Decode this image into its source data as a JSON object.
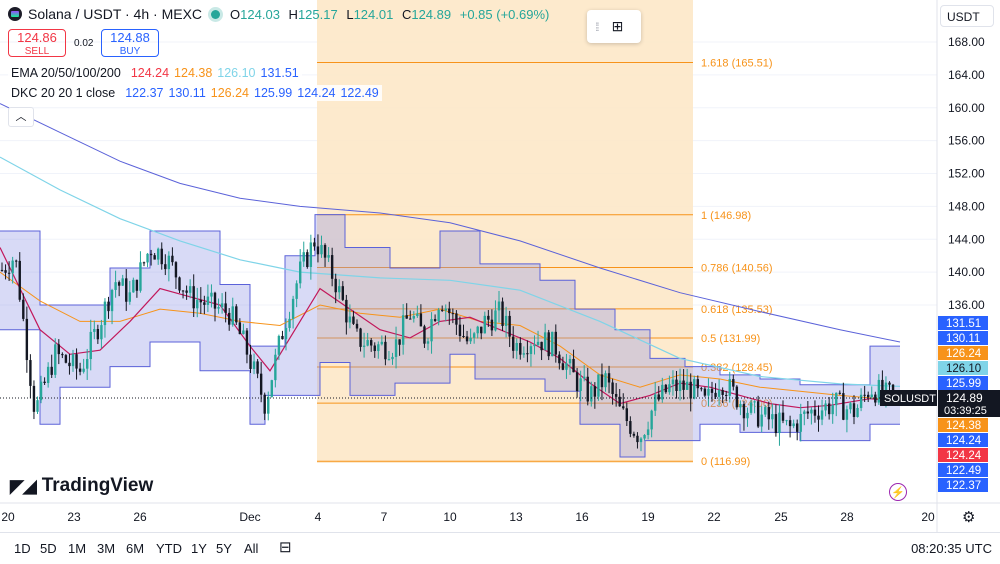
{
  "header": {
    "symbol_title": "Solana / USDT · 4h · MEXC",
    "ohlc": [
      {
        "key": "O",
        "value": "124.03"
      },
      {
        "key": "H",
        "value": "125.17"
      },
      {
        "key": "L",
        "value": "124.01"
      },
      {
        "key": "C",
        "value": "124.89"
      },
      {
        "key": "",
        "value": "+0.85 (+0.69%)"
      }
    ]
  },
  "trade": {
    "sell_price": "124.86",
    "sell_label": "SELL",
    "spread": "0.02",
    "buy_price": "124.88",
    "buy_label": "BUY"
  },
  "indicators": {
    "ema_label": "EMA 20/50/100/200",
    "ema_values": [
      {
        "value": "124.24",
        "color": "#f23645"
      },
      {
        "value": "124.38",
        "color": "#f7931a"
      },
      {
        "value": "126.10",
        "color": "#7fd4e8"
      },
      {
        "value": "131.51",
        "color": "#2962ff"
      }
    ],
    "dkc_label": "DKC 20 20 1 close",
    "dkc_values": [
      {
        "value": "122.37",
        "color": "#2962ff"
      },
      {
        "value": "130.11",
        "color": "#2962ff"
      },
      {
        "value": "126.24",
        "color": "#f7931a"
      },
      {
        "value": "125.99",
        "color": "#2962ff"
      },
      {
        "value": "124.24",
        "color": "#2962ff"
      },
      {
        "value": "122.49",
        "color": "#2962ff"
      }
    ]
  },
  "toolbar": {
    "currency": "USDT",
    "collapse_icon": "chevron-up-icon",
    "add_icon": "add-layout-icon"
  },
  "branding": {
    "name": "TradingView"
  },
  "bottom_bar": {
    "ranges": [
      "1D",
      "5D",
      "1M",
      "3M",
      "6M",
      "YTD",
      "1Y",
      "5Y",
      "All"
    ],
    "clock": "08:20:35 UTC"
  },
  "colors": {
    "up": "#26a69a",
    "down": "#ef5350",
    "fib": "#f7931a",
    "fib_zone": "#fde6c4",
    "keltner_fill": "#c9cdf5",
    "keltner_line": "#5b62d9"
  },
  "chart_data": {
    "type": "candlestick",
    "symbol": "SOLUSDT",
    "timeframe": "4h",
    "exchange": "MEXC",
    "y_axis": {
      "ticks": [
        168,
        164,
        160,
        156,
        152,
        148,
        144,
        140,
        136
      ],
      "ylim": [
        115.0,
        171.0
      ]
    },
    "x_axis": {
      "ticks": [
        "20",
        "23",
        "26",
        "Dec",
        "4",
        "7",
        "10",
        "13",
        "16",
        "19",
        "22",
        "25",
        "28",
        "20"
      ]
    },
    "last_price": {
      "label": "SOLUSDT",
      "value": "124.89",
      "countdown": "03:39:25"
    },
    "price_tags": [
      {
        "value": "131.51",
        "color": "#2962ff"
      },
      {
        "value": "130.11",
        "color": "#2962ff"
      },
      {
        "value": "126.24",
        "color": "#f7931a"
      },
      {
        "value": "126.10",
        "color": "#7fd4e8"
      },
      {
        "value": "125.99",
        "color": "#2962ff"
      },
      {
        "value": "124.38",
        "color": "#f7931a"
      },
      {
        "value": "124.24",
        "color": "#2962ff"
      },
      {
        "value": "124.24",
        "color": "#f23645"
      },
      {
        "value": "122.49",
        "color": "#2962ff"
      },
      {
        "value": "122.37",
        "color": "#2962ff"
      }
    ],
    "fibonacci": [
      {
        "ratio": 1.618,
        "price": 165.51,
        "label": "1.618 (165.51)"
      },
      {
        "ratio": 1,
        "price": 146.98,
        "label": "1 (146.98)"
      },
      {
        "ratio": 0.786,
        "price": 140.56,
        "label": "0.786 (140.56)"
      },
      {
        "ratio": 0.618,
        "price": 135.53,
        "label": "0.618 (135.53)"
      },
      {
        "ratio": 0.5,
        "price": 131.99,
        "label": "0.5 (131.99)"
      },
      {
        "ratio": 0.382,
        "price": 128.45,
        "label": "0.382 (128.45)"
      },
      {
        "ratio": 0.236,
        "price": 124.06,
        "label": "0.236 (124.06)"
      },
      {
        "ratio": 0,
        "price": 116.99,
        "label": "0 (116.99)"
      }
    ],
    "ema200": [
      [
        0,
        160.5
      ],
      [
        60,
        157
      ],
      [
        120,
        153.5
      ],
      [
        180,
        150.8
      ],
      [
        240,
        149
      ],
      [
        300,
        148
      ],
      [
        380,
        147.2
      ],
      [
        450,
        146
      ],
      [
        520,
        143.8
      ],
      [
        600,
        140.5
      ],
      [
        680,
        137.5
      ],
      [
        760,
        135.2
      ],
      [
        840,
        133
      ],
      [
        900,
        131.5
      ]
    ],
    "ema100": [
      [
        0,
        154
      ],
      [
        60,
        150
      ],
      [
        120,
        146.5
      ],
      [
        180,
        143.8
      ],
      [
        240,
        141.5
      ],
      [
        300,
        140
      ],
      [
        380,
        139.3
      ],
      [
        450,
        139
      ],
      [
        520,
        137.8
      ],
      [
        600,
        134
      ],
      [
        680,
        129.5
      ],
      [
        760,
        127.3
      ],
      [
        840,
        126.4
      ],
      [
        900,
        126.1
      ]
    ],
    "ema50": [
      [
        0,
        140
      ],
      [
        40,
        136.5
      ],
      [
        80,
        134
      ],
      [
        120,
        134
      ],
      [
        160,
        135.5
      ],
      [
        200,
        135
      ],
      [
        240,
        134
      ],
      [
        280,
        133.5
      ],
      [
        320,
        136
      ],
      [
        360,
        135
      ],
      [
        400,
        134.5
      ],
      [
        440,
        135.5
      ],
      [
        480,
        134
      ],
      [
        520,
        133.5
      ],
      [
        560,
        131
      ],
      [
        600,
        127.5
      ],
      [
        640,
        126
      ],
      [
        680,
        127.5
      ],
      [
        720,
        127
      ],
      [
        760,
        126
      ],
      [
        800,
        125.5
      ],
      [
        840,
        125
      ],
      [
        900,
        124.4
      ]
    ],
    "ema20": [
      [
        0,
        143
      ],
      [
        20,
        138
      ],
      [
        40,
        133
      ],
      [
        70,
        130
      ],
      [
        100,
        130.5
      ],
      [
        130,
        134
      ],
      [
        160,
        138
      ],
      [
        190,
        137
      ],
      [
        220,
        136
      ],
      [
        250,
        131
      ],
      [
        270,
        128
      ],
      [
        300,
        134
      ],
      [
        320,
        138
      ],
      [
        350,
        135.5
      ],
      [
        380,
        133
      ],
      [
        410,
        132
      ],
      [
        440,
        134
      ],
      [
        470,
        134.5
      ],
      [
        500,
        133
      ],
      [
        530,
        131.5
      ],
      [
        560,
        129.5
      ],
      [
        590,
        126.5
      ],
      [
        620,
        124
      ],
      [
        650,
        125
      ],
      [
        680,
        126.5
      ],
      [
        710,
        126
      ],
      [
        740,
        125
      ],
      [
        770,
        124
      ],
      [
        800,
        123.5
      ],
      [
        830,
        123.8
      ],
      [
        870,
        124.6
      ],
      [
        900,
        124.2
      ]
    ],
    "keltner_upper": [
      [
        0,
        145
      ],
      [
        40,
        145
      ],
      [
        40,
        136
      ],
      [
        110,
        136
      ],
      [
        110,
        140.5
      ],
      [
        150,
        140.5
      ],
      [
        150,
        145
      ],
      [
        220,
        145
      ],
      [
        220,
        138.5
      ],
      [
        250,
        138.5
      ],
      [
        250,
        131
      ],
      [
        285,
        131
      ],
      [
        285,
        142
      ],
      [
        315,
        142
      ],
      [
        315,
        147
      ],
      [
        345,
        147
      ],
      [
        345,
        143
      ],
      [
        390,
        143
      ],
      [
        390,
        140.5
      ],
      [
        440,
        140.5
      ],
      [
        440,
        145
      ],
      [
        480,
        145
      ],
      [
        480,
        141
      ],
      [
        540,
        141
      ],
      [
        540,
        139
      ],
      [
        575,
        139
      ],
      [
        575,
        135.5
      ],
      [
        615,
        135.5
      ],
      [
        615,
        133
      ],
      [
        650,
        133
      ],
      [
        650,
        129.5
      ],
      [
        685,
        129.5
      ],
      [
        685,
        128.5
      ],
      [
        720,
        128.5
      ],
      [
        720,
        127.5
      ],
      [
        760,
        127.5
      ],
      [
        760,
        127
      ],
      [
        800,
        127
      ],
      [
        800,
        126.3
      ],
      [
        870,
        126.3
      ],
      [
        870,
        131
      ],
      [
        900,
        131
      ]
    ],
    "keltner_lower": [
      [
        0,
        133
      ],
      [
        40,
        133
      ],
      [
        40,
        121.5
      ],
      [
        60,
        121.5
      ],
      [
        60,
        126
      ],
      [
        110,
        126
      ],
      [
        110,
        128.5
      ],
      [
        150,
        128.5
      ],
      [
        150,
        131.5
      ],
      [
        200,
        131.5
      ],
      [
        200,
        128
      ],
      [
        250,
        128
      ],
      [
        250,
        121.5
      ],
      [
        265,
        121.5
      ],
      [
        265,
        125
      ],
      [
        320,
        125
      ],
      [
        320,
        129
      ],
      [
        350,
        129
      ],
      [
        350,
        125
      ],
      [
        395,
        125
      ],
      [
        395,
        126.5
      ],
      [
        450,
        126.5
      ],
      [
        450,
        130
      ],
      [
        475,
        130
      ],
      [
        475,
        127
      ],
      [
        545,
        127
      ],
      [
        545,
        125.5
      ],
      [
        580,
        125.5
      ],
      [
        580,
        121.5
      ],
      [
        620,
        121.5
      ],
      [
        620,
        117.5
      ],
      [
        645,
        117.5
      ],
      [
        645,
        119.5
      ],
      [
        700,
        119.5
      ],
      [
        700,
        121.5
      ],
      [
        740,
        121.5
      ],
      [
        740,
        120.5
      ],
      [
        800,
        120.5
      ],
      [
        800,
        119.5
      ],
      [
        870,
        119.5
      ],
      [
        870,
        121.5
      ],
      [
        900,
        121.5
      ]
    ],
    "candle_path": [
      [
        0,
        140
      ],
      [
        15,
        142
      ],
      [
        35,
        123
      ],
      [
        55,
        130
      ],
      [
        80,
        128
      ],
      [
        100,
        134
      ],
      [
        115,
        139
      ],
      [
        130,
        137
      ],
      [
        150,
        143
      ],
      [
        165,
        142
      ],
      [
        190,
        137
      ],
      [
        210,
        136
      ],
      [
        230,
        135
      ],
      [
        245,
        131
      ],
      [
        265,
        124
      ],
      [
        285,
        134
      ],
      [
        300,
        140
      ],
      [
        315,
        144
      ],
      [
        335,
        139
      ],
      [
        355,
        132
      ],
      [
        375,
        131
      ],
      [
        395,
        131
      ],
      [
        410,
        135
      ],
      [
        425,
        132
      ],
      [
        440,
        137
      ],
      [
        455,
        134
      ],
      [
        470,
        131
      ],
      [
        485,
        134
      ],
      [
        500,
        135
      ],
      [
        515,
        131
      ],
      [
        535,
        132
      ],
      [
        555,
        131
      ],
      [
        575,
        127
      ],
      [
        590,
        125
      ],
      [
        605,
        127
      ],
      [
        620,
        123
      ],
      [
        640,
        120
      ],
      [
        655,
        124
      ],
      [
        670,
        126
      ],
      [
        690,
        126
      ],
      [
        705,
        124
      ],
      [
        720,
        127
      ],
      [
        735,
        125
      ],
      [
        750,
        123
      ],
      [
        770,
        122
      ],
      [
        790,
        121
      ],
      [
        810,
        123
      ],
      [
        835,
        124
      ],
      [
        855,
        123
      ],
      [
        870,
        126
      ],
      [
        885,
        125
      ],
      [
        900,
        124.9
      ]
    ]
  }
}
